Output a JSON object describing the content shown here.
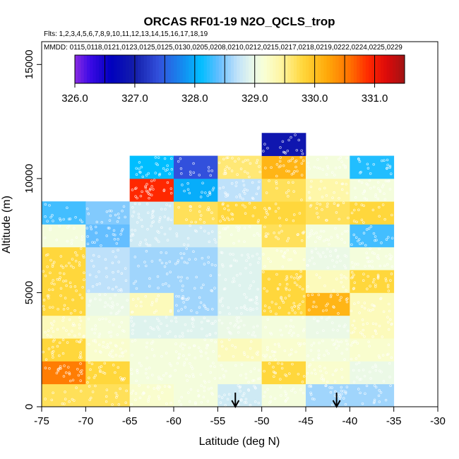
{
  "chart_data": {
    "type": "heatmap",
    "title": "ORCAS RF01-19 N2O_QCLS_trop",
    "flights_label": "Flts: 1,2,3,4,5,6,7,8,9,10,11,12,13,14,15,16,17,18,19",
    "dates_label": "MMDD: 0115,0118,0121,0123,0125,0125,0130,0205,0208,0210,0212,0215,0217,0218,0219,0222,0224,0225,0229",
    "xlabel": "Latitude (deg N)",
    "ylabel": "Altitude (m)",
    "xlim": [
      -75,
      -30
    ],
    "ylim": [
      0,
      16000
    ],
    "x_ticks": [
      -75,
      -70,
      -65,
      -60,
      -55,
      -50,
      -45,
      -40,
      -35,
      -30
    ],
    "x_tick_labels": [
      "-75",
      "-70",
      "-65",
      "-60",
      "-55",
      "-50",
      "-45",
      "-40",
      "-35",
      "-30"
    ],
    "y_ticks": [
      0,
      5000,
      10000,
      15000
    ],
    "y_tick_labels": [
      "0",
      "5000",
      "10000",
      "15000"
    ],
    "colorbar": {
      "min": 326.0,
      "max": 331.5,
      "tick_values": [
        326.0,
        327.0,
        328.0,
        329.0,
        330.0,
        331.0
      ],
      "tick_labels": [
        "326.0",
        "327.0",
        "328.0",
        "329.0",
        "330.0",
        "331.0"
      ]
    },
    "lat_bin_width": 5,
    "alt_bin_height": 1000,
    "cells": [
      {
        "lat": -75,
        "alt": 0,
        "value": 329.7
      },
      {
        "lat": -75,
        "alt": 1000,
        "value": 330.5
      },
      {
        "lat": -75,
        "alt": 2000,
        "value": 329.8
      },
      {
        "lat": -75,
        "alt": 3000,
        "value": 329.3
      },
      {
        "lat": -75,
        "alt": 4000,
        "value": 329.8
      },
      {
        "lat": -75,
        "alt": 5000,
        "value": 329.8
      },
      {
        "lat": -75,
        "alt": 6000,
        "value": 329.8
      },
      {
        "lat": -75,
        "alt": 7000,
        "value": 329.1
      },
      {
        "lat": -75,
        "alt": 8000,
        "value": 328.3
      },
      {
        "lat": -70,
        "alt": 0,
        "value": 329.7
      },
      {
        "lat": -70,
        "alt": 1000,
        "value": 329.8
      },
      {
        "lat": -70,
        "alt": 2000,
        "value": 329.2
      },
      {
        "lat": -70,
        "alt": 3000,
        "value": 329.1
      },
      {
        "lat": -70,
        "alt": 4000,
        "value": 329.0
      },
      {
        "lat": -70,
        "alt": 5000,
        "value": 328.7
      },
      {
        "lat": -70,
        "alt": 6000,
        "value": 328.7
      },
      {
        "lat": -70,
        "alt": 7000,
        "value": 328.4
      },
      {
        "lat": -70,
        "alt": 8000,
        "value": 328.5
      },
      {
        "lat": -65,
        "alt": 0,
        "value": 329.2
      },
      {
        "lat": -65,
        "alt": 1000,
        "value": 329.1
      },
      {
        "lat": -65,
        "alt": 2000,
        "value": 329.1
      },
      {
        "lat": -65,
        "alt": 3000,
        "value": 328.9
      },
      {
        "lat": -65,
        "alt": 4000,
        "value": 329.3
      },
      {
        "lat": -65,
        "alt": 5000,
        "value": 328.6
      },
      {
        "lat": -65,
        "alt": 6000,
        "value": 328.6
      },
      {
        "lat": -65,
        "alt": 7000,
        "value": 328.8
      },
      {
        "lat": -65,
        "alt": 8000,
        "value": 328.8
      },
      {
        "lat": -65,
        "alt": 9000,
        "value": 330.9
      },
      {
        "lat": -65,
        "alt": 10000,
        "value": 328.1
      },
      {
        "lat": -60,
        "alt": 0,
        "value": 329.1
      },
      {
        "lat": -60,
        "alt": 1000,
        "value": 329.1
      },
      {
        "lat": -60,
        "alt": 2000,
        "value": 329.1
      },
      {
        "lat": -60,
        "alt": 3000,
        "value": 328.9
      },
      {
        "lat": -60,
        "alt": 4000,
        "value": 328.6
      },
      {
        "lat": -60,
        "alt": 5000,
        "value": 328.6
      },
      {
        "lat": -60,
        "alt": 6000,
        "value": 328.6
      },
      {
        "lat": -60,
        "alt": 7000,
        "value": 328.8
      },
      {
        "lat": -60,
        "alt": 8000,
        "value": 329.7
      },
      {
        "lat": -60,
        "alt": 9000,
        "value": 328.0
      },
      {
        "lat": -60,
        "alt": 10000,
        "value": 327.4
      },
      {
        "lat": -55,
        "alt": 0,
        "value": 328.8
      },
      {
        "lat": -55,
        "alt": 1000,
        "value": 329.1
      },
      {
        "lat": -55,
        "alt": 2000,
        "value": 329.3
      },
      {
        "lat": -55,
        "alt": 3000,
        "value": 329.0
      },
      {
        "lat": -55,
        "alt": 4000,
        "value": 328.9
      },
      {
        "lat": -55,
        "alt": 5000,
        "value": 328.9
      },
      {
        "lat": -55,
        "alt": 6000,
        "value": 328.9
      },
      {
        "lat": -55,
        "alt": 7000,
        "value": 329.1
      },
      {
        "lat": -55,
        "alt": 8000,
        "value": 329.8
      },
      {
        "lat": -55,
        "alt": 9000,
        "value": 328.7
      },
      {
        "lat": -55,
        "alt": 10000,
        "value": 329.6
      },
      {
        "lat": -50,
        "alt": 0,
        "value": 329.1
      },
      {
        "lat": -50,
        "alt": 1000,
        "value": 329.8
      },
      {
        "lat": -50,
        "alt": 2000,
        "value": 329.2
      },
      {
        "lat": -50,
        "alt": 3000,
        "value": 329.1
      },
      {
        "lat": -50,
        "alt": 4000,
        "value": 329.8
      },
      {
        "lat": -50,
        "alt": 5000,
        "value": 329.8
      },
      {
        "lat": -50,
        "alt": 6000,
        "value": 329.2
      },
      {
        "lat": -50,
        "alt": 7000,
        "value": 329.7
      },
      {
        "lat": -50,
        "alt": 8000,
        "value": 329.8
      },
      {
        "lat": -50,
        "alt": 9000,
        "value": 329.7
      },
      {
        "lat": -50,
        "alt": 10000,
        "value": 330.1
      },
      {
        "lat": -50,
        "alt": 11000,
        "value": 326.9
      },
      {
        "lat": -45,
        "alt": 0,
        "value": 328.6
      },
      {
        "lat": -45,
        "alt": 1000,
        "value": 329.2
      },
      {
        "lat": -45,
        "alt": 2000,
        "value": 329.1
      },
      {
        "lat": -45,
        "alt": 3000,
        "value": 329.0
      },
      {
        "lat": -45,
        "alt": 4000,
        "value": 330.1
      },
      {
        "lat": -45,
        "alt": 5000,
        "value": 329.3
      },
      {
        "lat": -45,
        "alt": 6000,
        "value": 329.0
      },
      {
        "lat": -45,
        "alt": 7000,
        "value": 329.1
      },
      {
        "lat": -45,
        "alt": 8000,
        "value": 329.7
      },
      {
        "lat": -45,
        "alt": 9000,
        "value": 329.4
      },
      {
        "lat": -45,
        "alt": 10000,
        "value": 329.1
      },
      {
        "lat": -40,
        "alt": 0,
        "value": 328.6
      },
      {
        "lat": -40,
        "alt": 1000,
        "value": 329.0
      },
      {
        "lat": -40,
        "alt": 2000,
        "value": 329.2
      },
      {
        "lat": -40,
        "alt": 3000,
        "value": 329.3
      },
      {
        "lat": -40,
        "alt": 4000,
        "value": 329.3
      },
      {
        "lat": -40,
        "alt": 5000,
        "value": 329.8
      },
      {
        "lat": -40,
        "alt": 6000,
        "value": 329.1
      },
      {
        "lat": -40,
        "alt": 7000,
        "value": 328.3
      },
      {
        "lat": -40,
        "alt": 8000,
        "value": 329.8
      },
      {
        "lat": -40,
        "alt": 9000,
        "value": 329.1
      },
      {
        "lat": -40,
        "alt": 10000,
        "value": 328.2
      }
    ],
    "arrows": [
      {
        "lat": -53,
        "label": "arrow"
      },
      {
        "lat": -41.5,
        "label": "arrow"
      }
    ]
  }
}
